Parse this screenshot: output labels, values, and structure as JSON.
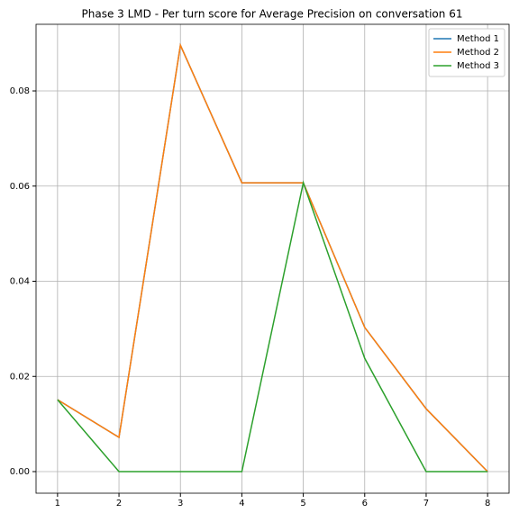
{
  "chart_data": {
    "type": "line",
    "title": "Phase 3 LMD - Per turn score for Average Precision on conversation 61",
    "x": [
      1,
      2,
      3,
      4,
      5,
      6,
      7,
      8
    ],
    "series": [
      {
        "name": "Method 1",
        "color": "#1f77b4",
        "values": [
          0.0151,
          0.0072,
          0.0896,
          0.0607,
          0.0607,
          0.0303,
          0.0132,
          0
        ]
      },
      {
        "name": "Method 2",
        "color": "#ff7f0e",
        "values": [
          0.0151,
          0.0072,
          0.0896,
          0.0607,
          0.0607,
          0.0303,
          0.0132,
          0
        ]
      },
      {
        "name": "Method 3",
        "color": "#2ca02c",
        "values": [
          0.0151,
          0,
          0,
          0,
          0.0607,
          0.0238,
          0,
          0
        ]
      }
    ],
    "xlim": [
      0.65,
      8.35
    ],
    "xticks": [
      1,
      2,
      3,
      4,
      5,
      6,
      7,
      8
    ],
    "ylim": [
      -0.00454,
      0.094
    ],
    "yticks": [
      {
        "value": 0,
        "label": "0.00"
      },
      {
        "value": 0.02,
        "label": "0.02"
      },
      {
        "value": 0.04,
        "label": "0.04"
      },
      {
        "value": 0.06,
        "label": "0.06"
      },
      {
        "value": 0.08,
        "label": "0.08"
      }
    ],
    "grid": true,
    "legend": "upper-right"
  }
}
